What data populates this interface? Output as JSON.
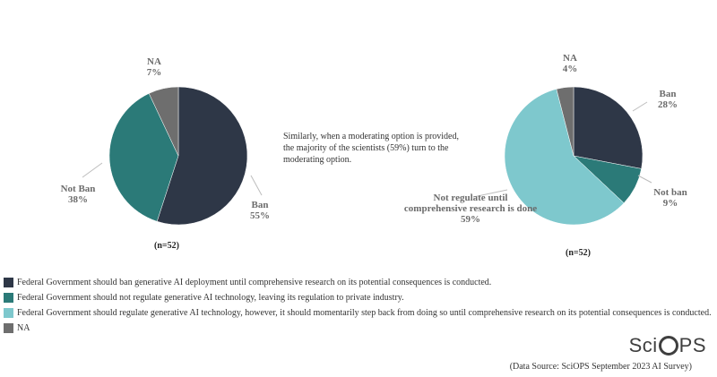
{
  "chart_data": [
    {
      "type": "pie",
      "n_label": "(n=52)",
      "slices": [
        {
          "label": "Ban",
          "pct_label": "55%",
          "value": 55,
          "color": "#2e3747"
        },
        {
          "label": "Not Ban",
          "pct_label": "38%",
          "value": 38,
          "color": "#2b7a78"
        },
        {
          "label": "NA",
          "pct_label": "7%",
          "value": 7,
          "color": "#6e6e6e"
        }
      ]
    },
    {
      "type": "pie",
      "n_label": "(n=52)",
      "slices": [
        {
          "label": "Ban",
          "pct_label": "28%",
          "value": 28,
          "color": "#2e3747"
        },
        {
          "label": "Not ban",
          "pct_label": "9%",
          "value": 9,
          "color": "#2b7a78"
        },
        {
          "label": "Not regulate until comprehensive research is done",
          "pct_label": "59%",
          "value": 59,
          "color": "#7ec8cd"
        },
        {
          "label": "NA",
          "pct_label": "4%",
          "value": 4,
          "color": "#6e6e6e"
        }
      ]
    }
  ],
  "note": "Similarly, when a moderating option is provided, the majority of the scientists (59%) turn to the moderating option.",
  "legend": [
    {
      "color": "#2e3747",
      "text": "Federal Government should ban generative AI deployment until comprehensive research on its potential consequences is conducted."
    },
    {
      "color": "#2b7a78",
      "text": "Federal Government should not regulate generative AI technology, leaving its regulation to private industry."
    },
    {
      "color": "#7ec8cd",
      "text": "Federal Government should regulate generative AI technology, however, it should momentarily step back from doing so until comprehensive research on its potential consequences is conducted."
    },
    {
      "color": "#6e6e6e",
      "text": "NA"
    }
  ],
  "brand": {
    "prefix": "Sci",
    "suffix": "PS"
  },
  "source": "(Data Source: SciOPS September 2023 AI Survey)"
}
